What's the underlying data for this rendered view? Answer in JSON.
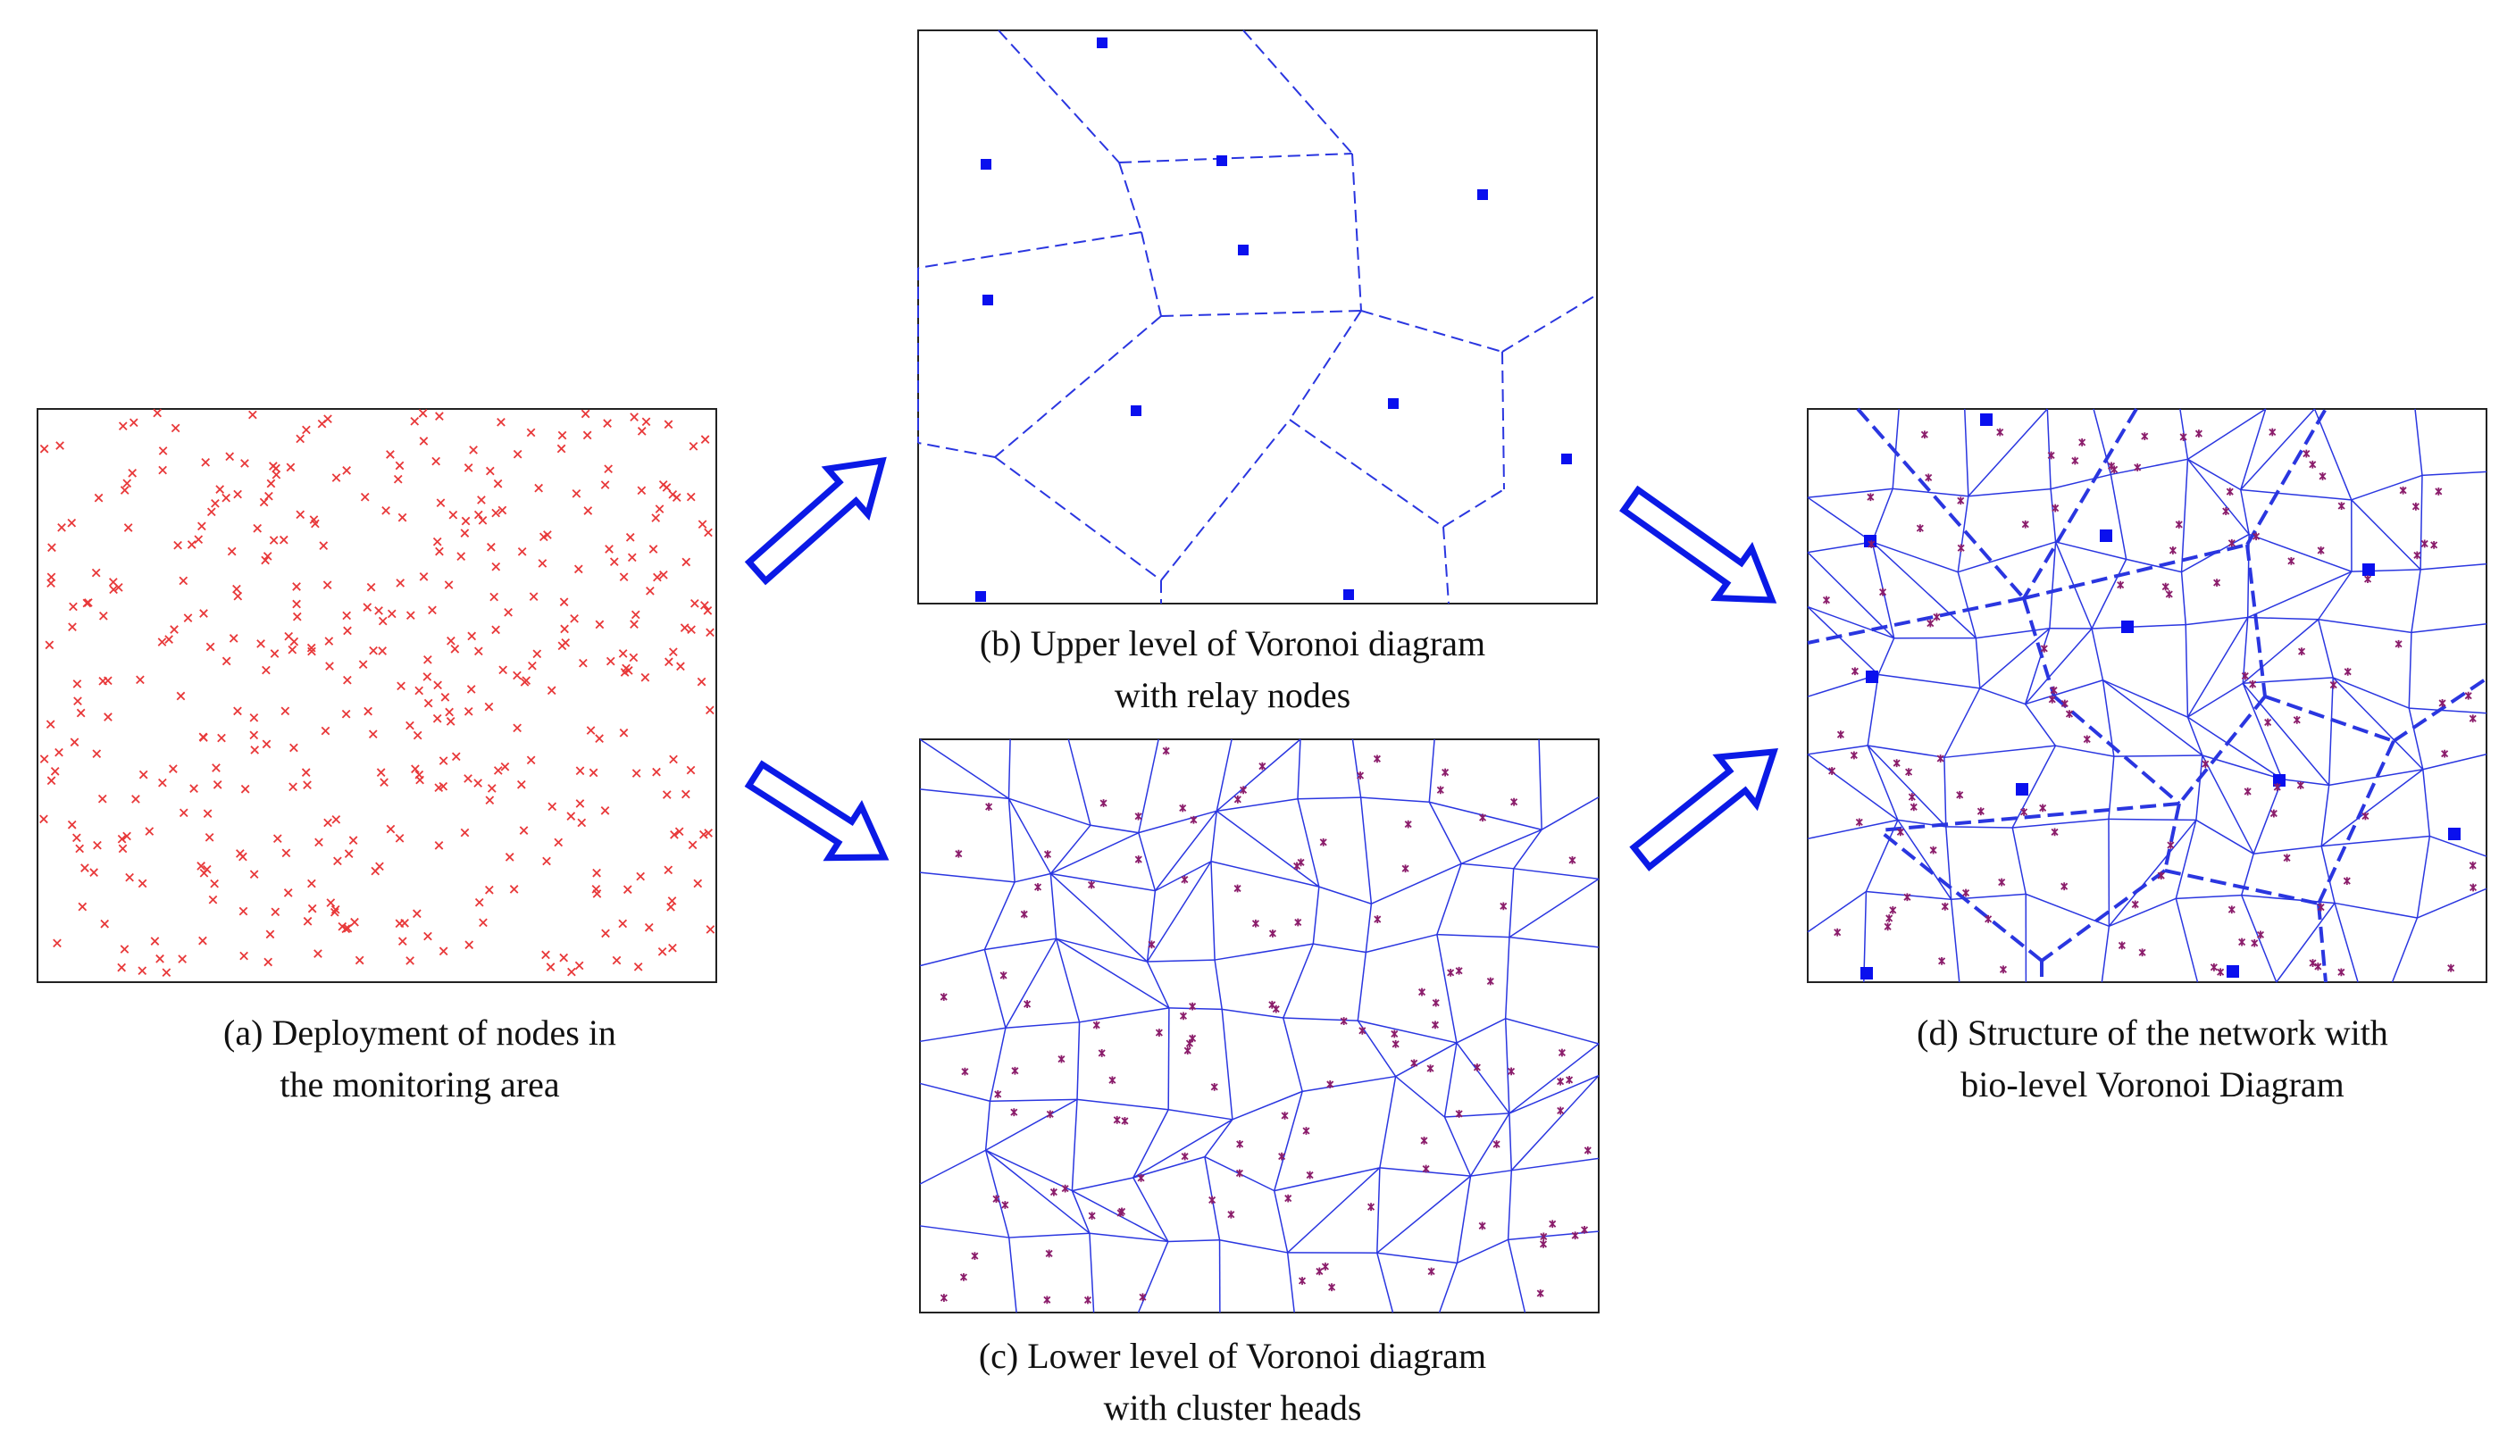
{
  "figure": {
    "panels": [
      {
        "id": "a",
        "caption_line1": "(a)  Deployment of nodes in",
        "caption_line2": "the monitoring  area",
        "content": "sensor nodes"
      },
      {
        "id": "b",
        "caption_line1": "(b)  Upper level of Voronoi diagram",
        "caption_line2": "with relay nodes",
        "content": "relay nodes"
      },
      {
        "id": "c",
        "caption_line1": "(c)  Lower level of Voronoi diagram",
        "caption_line2": "with cluster  heads",
        "content": "cluster heads"
      },
      {
        "id": "d",
        "caption_line1": "(d)  Structure of the network with",
        "caption_line2": "bio-level Voronoi Diagram",
        "content": "combined two-level structure"
      }
    ],
    "arrows": [
      {
        "from": "a",
        "to": "b"
      },
      {
        "from": "a",
        "to": "c"
      },
      {
        "from": "b",
        "to": "d"
      },
      {
        "from": "c",
        "to": "d"
      }
    ]
  },
  "colors": {
    "sensor_marker": "#e8393a",
    "relay_node": "#0a10ee",
    "cluster_head": "#8b1d6b",
    "voronoi_edge": "#2a36e0",
    "arrow": "#0b1ae6",
    "frame": "#222222"
  },
  "marker_symbols": {
    "sensor": "cross-mark",
    "relay": "filled-square",
    "cluster_head": "asterisk-mark"
  },
  "line_styles": {
    "upper_level_edges": "dashed",
    "lower_level_edges": "solid"
  }
}
